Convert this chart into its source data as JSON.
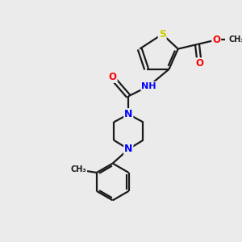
{
  "bg_color": "#ebebeb",
  "atom_colors": {
    "S": "#cccc00",
    "N": "#0000ff",
    "O": "#ff0000",
    "C": "#1a1a1a",
    "H": "#6e6e6e"
  },
  "bond_color": "#1a1a1a",
  "lw": 1.6,
  "fig_size": [
    3.0,
    3.0
  ],
  "dpi": 100,
  "xlim": [
    0,
    10
  ],
  "ylim": [
    0,
    10
  ]
}
